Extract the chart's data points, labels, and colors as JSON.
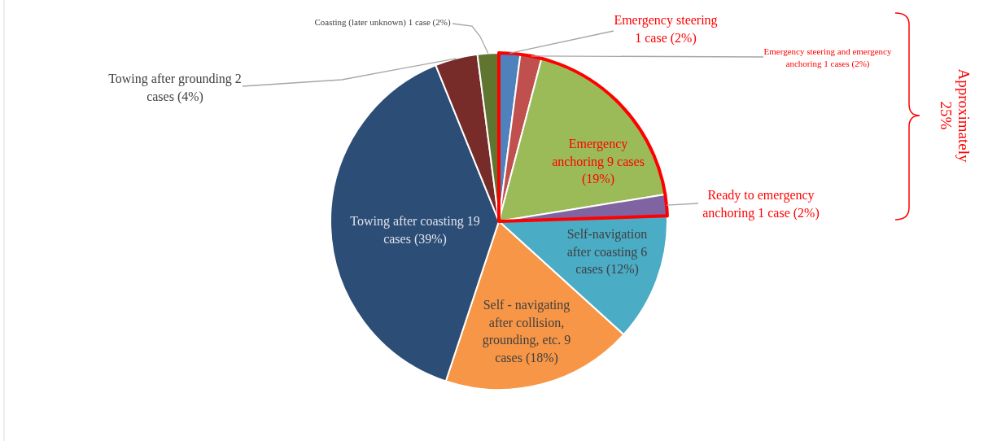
{
  "chart_data": {
    "type": "pie",
    "categories": [
      "Emergency steering 1 case (2%)",
      "Emergency steering and emergency anchoring 1 cases (2%)",
      "Emergency anchoring 9 cases (19%)",
      "Ready to emergency anchoring 1 case (2%)",
      "Self-navigation after coasting 6 cases (12%)",
      "Self - navigating after collision, grounding, etc. 9 cases (18%)",
      "Towing after coasting 19 cases (39%)",
      "Towing after grounding 2 cases (4%)",
      "Coasting (later unknown) 1 case (2%)"
    ],
    "values": [
      1,
      1,
      9,
      1,
      6,
      9,
      19,
      2,
      1
    ],
    "colors": [
      "#4f81bd",
      "#c0504d",
      "#9bbb59",
      "#8064a2",
      "#4bacc6",
      "#f79646",
      "#2c4d75",
      "#772c2a",
      "#5f7530"
    ],
    "annotations": [
      "Approximately 25%"
    ]
  }
}
